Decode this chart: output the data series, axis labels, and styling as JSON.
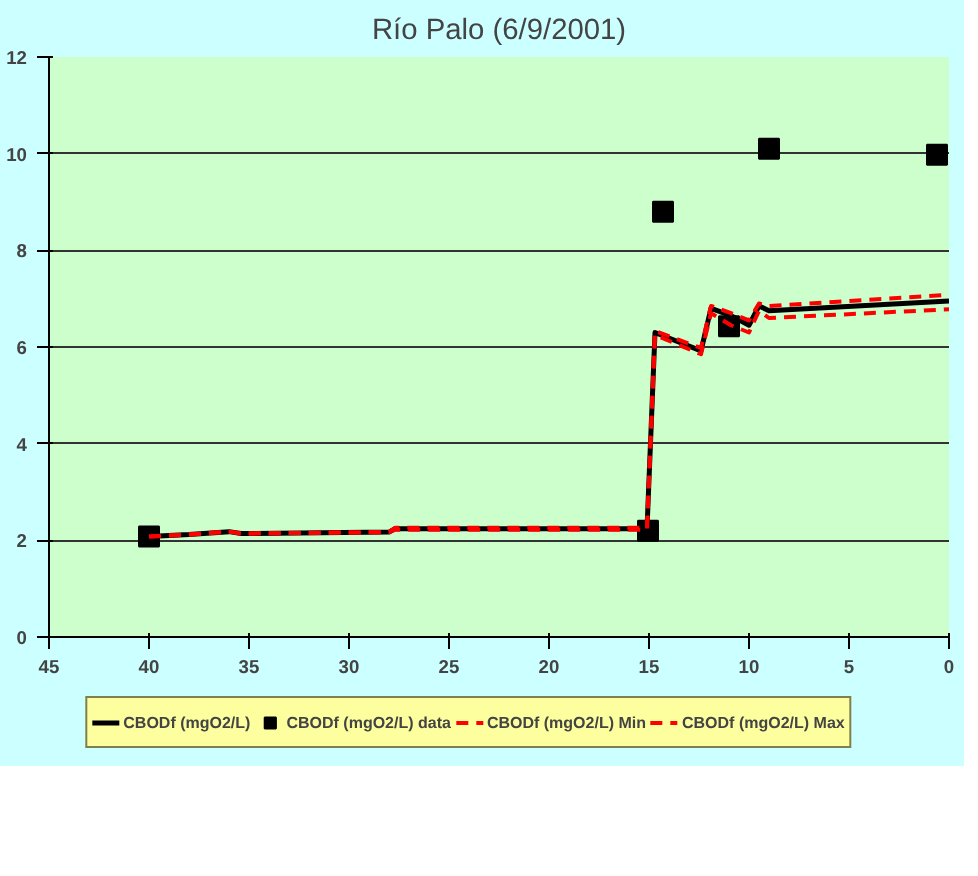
{
  "chart_data": {
    "type": "line",
    "title": "Río Palo (6/9/2001)",
    "xlim": [
      45,
      0
    ],
    "xticks": [
      45,
      40,
      35,
      30,
      25,
      20,
      15,
      10,
      5,
      0
    ],
    "ylim": [
      0,
      12
    ],
    "yticks": [
      0,
      2,
      4,
      6,
      8,
      10,
      12
    ],
    "grid": "y",
    "legend": "bottom",
    "line_style": "solid",
    "marker": "none",
    "series": [
      {
        "name": "CBODf (mgO2/L)",
        "color": "#000000",
        "x": [
          40,
          38,
          36,
          35.4,
          28,
          27.7,
          15.1,
          14.7,
          12.4,
          11.9,
          10.9,
          10.0,
          9.5,
          9,
          0
        ],
        "values": [
          2.08,
          2.12,
          2.18,
          2.14,
          2.17,
          2.24,
          2.24,
          6.3,
          5.92,
          6.8,
          6.65,
          6.45,
          6.85,
          6.75,
          6.95
        ]
      },
      {
        "name": "CBODf (mgO2/L) data",
        "color": "#000000",
        "type": "scatter",
        "marker": "square",
        "x": [
          40,
          15.05,
          14.3,
          11.0,
          9.0,
          0.6
        ],
        "values": [
          2.08,
          2.2,
          8.8,
          6.43,
          10.1,
          9.98
        ]
      },
      {
        "name": "CBODf (mgO2/L) Min",
        "color": "#ff0000",
        "line_style": "dashed",
        "x": [
          40,
          38,
          36,
          35.4,
          28,
          27.7,
          15.1,
          14.7,
          12.4,
          11.9,
          10.9,
          10.0,
          9.5,
          9,
          0
        ],
        "values": [
          2.08,
          2.12,
          2.18,
          2.14,
          2.17,
          2.22,
          2.22,
          6.25,
          5.85,
          6.7,
          6.45,
          6.3,
          6.75,
          6.6,
          6.78
        ]
      },
      {
        "name": "CBODf (mgO2/L) Max",
        "color": "#ff0000",
        "line_style": "dashed",
        "x": [
          40,
          38,
          36,
          35.4,
          28,
          27.7,
          15.1,
          14.7,
          12.4,
          11.9,
          10.9,
          10.0,
          9.5,
          9,
          0
        ],
        "values": [
          2.08,
          2.12,
          2.18,
          2.14,
          2.17,
          2.26,
          2.26,
          6.33,
          5.98,
          6.85,
          6.7,
          6.55,
          6.9,
          6.85,
          7.08
        ]
      }
    ]
  }
}
